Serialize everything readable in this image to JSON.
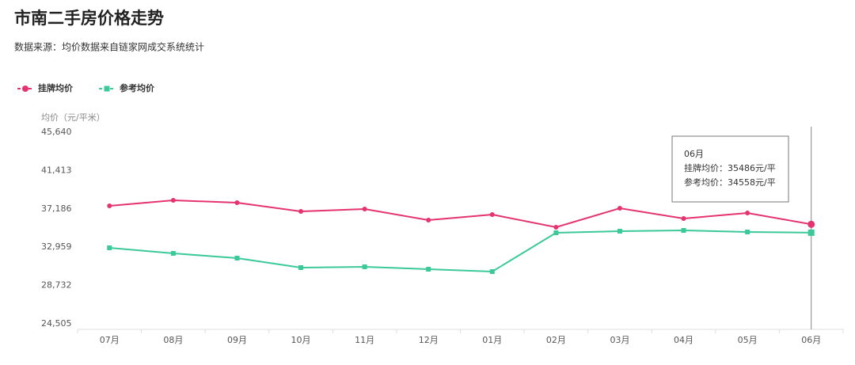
{
  "chart_data": {
    "type": "line",
    "title": "市南二手房价格走势",
    "subtitle": "数据来源：均价数据来自链家网成交系统统计",
    "y_axis_label": "均价（元/平米）",
    "categories": [
      "07月",
      "08月",
      "09月",
      "10月",
      "11月",
      "12月",
      "01月",
      "02月",
      "03月",
      "04月",
      "05月",
      "06月"
    ],
    "series": [
      {
        "name": "挂牌均价",
        "color": "#e5336f",
        "marker": "circle",
        "values": [
          37518,
          38129,
          37867,
          36906,
          37168,
          35946,
          36557,
          35160,
          37256,
          36120,
          36732,
          35486
        ]
      },
      {
        "name": "参考均价",
        "color": "#3cc99a",
        "marker": "square",
        "values": [
          32889,
          32278,
          31754,
          30706,
          30793,
          30531,
          30269,
          34548,
          34723,
          34810,
          34636,
          34558
        ]
      }
    ],
    "ylim": [
      24505,
      45640
    ],
    "yticks": [
      {
        "value": 24505,
        "label": "24,505"
      },
      {
        "value": 28732,
        "label": "28,732"
      },
      {
        "value": 32959,
        "label": "32,959"
      },
      {
        "value": 37186,
        "label": "37,186"
      },
      {
        "value": 41413,
        "label": "41,413"
      },
      {
        "value": 45640,
        "label": "45,640"
      }
    ],
    "legend": "top-left",
    "tooltip": {
      "index": 11,
      "title": "06月",
      "lines": [
        "挂牌均价：35486元/平",
        "参考均价：34558元/平"
      ]
    }
  }
}
